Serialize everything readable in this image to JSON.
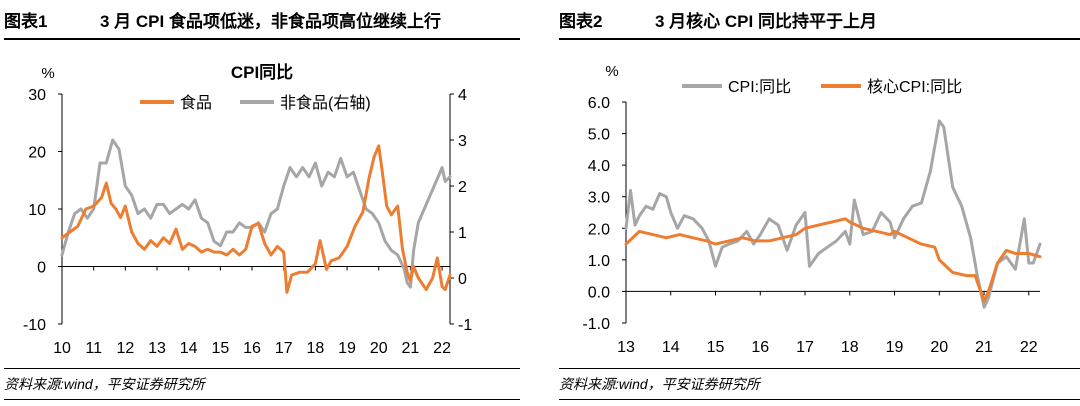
{
  "left": {
    "figure_no": "图表1",
    "figure_title": "3 月 CPI 食品项低迷，非食品项高位继续上行",
    "source": "资料来源:wind，平安证券研究所"
  },
  "right": {
    "figure_no": "图表2",
    "figure_title": "3 月核心 CPI 同比持平于上月",
    "source": "资料来源:wind，平安证券研究所"
  },
  "colors": {
    "orange": "#ED7D31",
    "gray": "#A6A6A6",
    "axis": "#000000"
  },
  "chart_data": [
    {
      "type": "line",
      "title": "CPI同比",
      "ylabel": "%",
      "x_ticks": [
        "10",
        "11",
        "12",
        "13",
        "14",
        "15",
        "16",
        "17",
        "18",
        "19",
        "20",
        "21",
        "22"
      ],
      "x_range": [
        2010.0,
        2022.25
      ],
      "ylim": [
        -10,
        30
      ],
      "y_ticks": [
        -10,
        0,
        10,
        20,
        30
      ],
      "ylim_right": [
        -1,
        4
      ],
      "y_ticks_right": [
        -1,
        0,
        1,
        2,
        3,
        4
      ],
      "legend_position": "top-center",
      "grid": false,
      "series": [
        {
          "name": "食品",
          "axis": "left",
          "color": "#ED7D31",
          "x": [
            2010.0,
            2010.25,
            2010.5,
            2010.75,
            2011.0,
            2011.25,
            2011.4,
            2011.55,
            2011.7,
            2011.85,
            2012.0,
            2012.2,
            2012.4,
            2012.6,
            2012.8,
            2013.0,
            2013.2,
            2013.4,
            2013.6,
            2013.8,
            2014.0,
            2014.2,
            2014.4,
            2014.6,
            2014.8,
            2015.0,
            2015.2,
            2015.4,
            2015.6,
            2015.8,
            2016.0,
            2016.2,
            2016.4,
            2016.6,
            2016.8,
            2017.0,
            2017.1,
            2017.25,
            2017.5,
            2017.75,
            2018.0,
            2018.15,
            2018.35,
            2018.5,
            2018.75,
            2019.0,
            2019.25,
            2019.5,
            2019.7,
            2019.85,
            2020.0,
            2020.1,
            2020.25,
            2020.4,
            2020.6,
            2020.75,
            2020.9,
            2021.0,
            2021.1,
            2021.25,
            2021.5,
            2021.7,
            2021.85,
            2022.0,
            2022.1,
            2022.25
          ],
          "values": [
            5.0,
            6.0,
            7.0,
            10.0,
            10.5,
            12.0,
            14.5,
            11.0,
            10.0,
            8.5,
            10.5,
            6.0,
            4.0,
            3.0,
            4.5,
            3.5,
            5.0,
            4.0,
            6.5,
            3.0,
            4.0,
            3.5,
            2.5,
            3.0,
            2.5,
            2.5,
            2.0,
            3.0,
            2.0,
            3.0,
            7.0,
            7.5,
            4.0,
            2.0,
            3.5,
            2.5,
            -4.5,
            -1.5,
            -1.0,
            -1.0,
            0.5,
            4.5,
            -0.5,
            1.0,
            1.5,
            3.5,
            7.0,
            9.5,
            15.5,
            19.0,
            21.0,
            17.0,
            10.5,
            9.0,
            10.5,
            3.0,
            -1.0,
            -2.5,
            0.0,
            -2.0,
            -4.0,
            -2.0,
            1.5,
            -3.5,
            -4.0,
            -1.5
          ]
        },
        {
          "name": "非食品(右轴)",
          "axis": "right",
          "color": "#A6A6A6",
          "x": [
            2010.0,
            2010.2,
            2010.4,
            2010.6,
            2010.8,
            2011.0,
            2011.2,
            2011.4,
            2011.6,
            2011.8,
            2012.0,
            2012.2,
            2012.4,
            2012.6,
            2012.8,
            2013.0,
            2013.2,
            2013.4,
            2013.6,
            2013.8,
            2014.0,
            2014.2,
            2014.4,
            2014.6,
            2014.8,
            2015.0,
            2015.2,
            2015.4,
            2015.6,
            2015.8,
            2016.0,
            2016.2,
            2016.4,
            2016.6,
            2016.8,
            2017.0,
            2017.2,
            2017.4,
            2017.6,
            2017.8,
            2018.0,
            2018.2,
            2018.4,
            2018.6,
            2018.8,
            2019.0,
            2019.2,
            2019.4,
            2019.6,
            2019.8,
            2020.0,
            2020.2,
            2020.4,
            2020.6,
            2020.8,
            2020.9,
            2021.0,
            2021.1,
            2021.25,
            2021.5,
            2021.75,
            2022.0,
            2022.1,
            2022.25
          ],
          "values": [
            0.5,
            1.0,
            1.4,
            1.5,
            1.3,
            1.5,
            2.5,
            2.5,
            3.0,
            2.8,
            2.0,
            1.8,
            1.4,
            1.5,
            1.3,
            1.6,
            1.6,
            1.4,
            1.5,
            1.6,
            1.5,
            1.7,
            1.3,
            1.2,
            0.8,
            0.7,
            1.0,
            1.0,
            1.2,
            1.1,
            1.1,
            1.2,
            1.0,
            1.4,
            1.5,
            2.0,
            2.4,
            2.2,
            2.4,
            2.2,
            2.5,
            2.0,
            2.3,
            2.2,
            2.6,
            2.2,
            2.3,
            1.9,
            1.5,
            1.4,
            1.2,
            0.8,
            0.6,
            0.5,
            0.2,
            -0.1,
            -0.2,
            0.6,
            1.2,
            1.6,
            2.0,
            2.4,
            2.1,
            2.2
          ]
        }
      ]
    },
    {
      "type": "line",
      "ylabel": "%",
      "x_ticks": [
        "13",
        "14",
        "15",
        "16",
        "17",
        "18",
        "19",
        "20",
        "21",
        "22"
      ],
      "x_range": [
        2013.0,
        2022.25
      ],
      "ylim": [
        -1.0,
        6.0
      ],
      "y_ticks": [
        "-1.0",
        "0.0",
        "1.0",
        "2.0",
        "3.0",
        "4.0",
        "5.0",
        "6.0"
      ],
      "legend_position": "top-center",
      "grid": false,
      "series": [
        {
          "name": "CPI:同比",
          "color": "#A6A6A6",
          "x": [
            2013.0,
            2013.1,
            2013.2,
            2013.3,
            2013.45,
            2013.6,
            2013.75,
            2013.9,
            2014.0,
            2014.15,
            2014.3,
            2014.5,
            2014.7,
            2014.85,
            2015.0,
            2015.15,
            2015.3,
            2015.5,
            2015.7,
            2015.85,
            2016.0,
            2016.2,
            2016.4,
            2016.6,
            2016.8,
            2017.0,
            2017.1,
            2017.3,
            2017.5,
            2017.7,
            2017.9,
            2018.0,
            2018.1,
            2018.3,
            2018.5,
            2018.7,
            2018.9,
            2019.0,
            2019.2,
            2019.4,
            2019.6,
            2019.8,
            2020.0,
            2020.1,
            2020.3,
            2020.5,
            2020.7,
            2020.85,
            2021.0,
            2021.1,
            2021.3,
            2021.5,
            2021.7,
            2021.9,
            2022.0,
            2022.1,
            2022.25
          ],
          "values": [
            2.0,
            3.2,
            2.1,
            2.4,
            2.7,
            2.6,
            3.1,
            3.0,
            2.5,
            2.0,
            2.4,
            2.3,
            2.0,
            1.6,
            0.8,
            1.4,
            1.5,
            1.6,
            1.9,
            1.5,
            1.8,
            2.3,
            2.1,
            1.3,
            2.1,
            2.5,
            0.8,
            1.2,
            1.4,
            1.6,
            1.9,
            1.5,
            2.9,
            1.8,
            1.9,
            2.5,
            2.2,
            1.7,
            2.3,
            2.7,
            2.8,
            3.8,
            5.4,
            5.2,
            3.3,
            2.7,
            1.7,
            0.5,
            -0.5,
            -0.2,
            0.9,
            1.1,
            0.7,
            2.3,
            0.9,
            0.9,
            1.5
          ]
        },
        {
          "name": "核心CPI:同比",
          "color": "#ED7D31",
          "x": [
            2013.0,
            2013.3,
            2013.6,
            2013.9,
            2014.2,
            2014.5,
            2014.8,
            2015.0,
            2015.3,
            2015.6,
            2015.9,
            2016.2,
            2016.5,
            2016.8,
            2017.0,
            2017.3,
            2017.6,
            2017.9,
            2018.0,
            2018.3,
            2018.6,
            2018.9,
            2019.0,
            2019.3,
            2019.6,
            2019.9,
            2020.0,
            2020.3,
            2020.6,
            2020.8,
            2021.0,
            2021.1,
            2021.3,
            2021.5,
            2021.7,
            2021.9,
            2022.0,
            2022.25
          ],
          "values": [
            1.5,
            1.9,
            1.8,
            1.7,
            1.8,
            1.7,
            1.6,
            1.5,
            1.6,
            1.7,
            1.6,
            1.6,
            1.7,
            1.8,
            2.0,
            2.1,
            2.2,
            2.3,
            2.2,
            2.0,
            1.9,
            1.8,
            1.9,
            1.7,
            1.5,
            1.4,
            1.0,
            0.6,
            0.5,
            0.5,
            -0.3,
            0.0,
            0.9,
            1.3,
            1.2,
            1.2,
            1.2,
            1.1
          ]
        }
      ]
    }
  ]
}
